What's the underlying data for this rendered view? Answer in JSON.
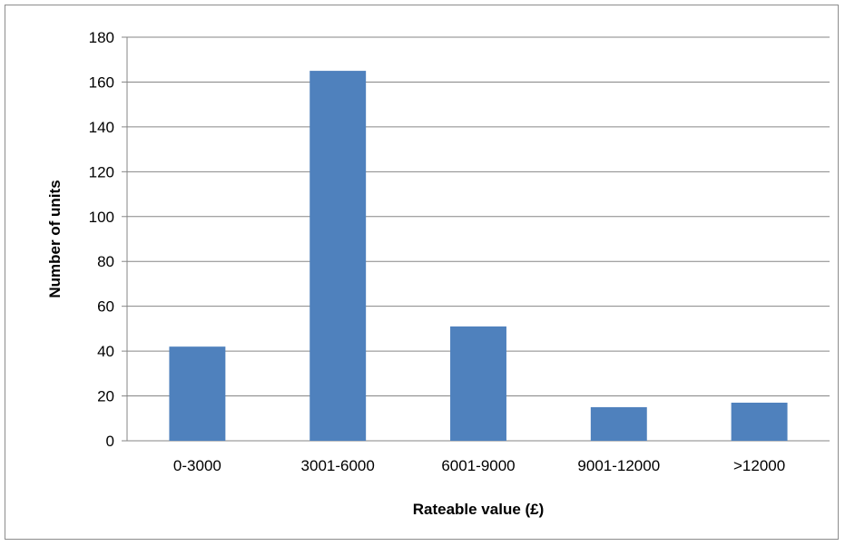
{
  "chart_data": {
    "type": "bar",
    "title": "",
    "xlabel": "Rateable value (£)",
    "ylabel": "Number of units",
    "categories": [
      "0-3000",
      "3001-6000",
      "6001-9000",
      "9001-12000",
      ">12000"
    ],
    "values": [
      42,
      165,
      51,
      15,
      17
    ],
    "ylim": [
      0,
      180
    ],
    "yticks": [
      0,
      20,
      40,
      60,
      80,
      100,
      120,
      140,
      160,
      180
    ],
    "grid": true,
    "legend": "none",
    "bar_color": "#4F81BD",
    "grid_color": "#868686"
  }
}
